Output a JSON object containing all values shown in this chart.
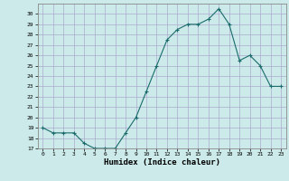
{
  "x": [
    0,
    1,
    2,
    3,
    4,
    5,
    6,
    7,
    8,
    9,
    10,
    11,
    12,
    13,
    14,
    15,
    16,
    17,
    18,
    19,
    20,
    21,
    22,
    23
  ],
  "y": [
    19,
    18.5,
    18.5,
    18.5,
    17.5,
    17,
    17,
    17,
    18.5,
    20,
    22.5,
    25,
    27.5,
    28.5,
    29,
    29,
    29.5,
    30.5,
    29,
    25.5,
    26,
    25,
    23,
    23
  ],
  "title": "",
  "xlabel": "Humidex (Indice chaleur)",
  "line_color": "#1a6b6b",
  "marker": "+",
  "bg_color": "#cceaea",
  "grid_color": "#aaaacc",
  "ylim": [
    17,
    31
  ],
  "xlim": [
    -0.5,
    23.5
  ],
  "yticks": [
    17,
    18,
    19,
    20,
    21,
    22,
    23,
    24,
    25,
    26,
    27,
    28,
    29,
    30
  ],
  "xticks": [
    0,
    1,
    2,
    3,
    4,
    5,
    6,
    7,
    8,
    9,
    10,
    11,
    12,
    13,
    14,
    15,
    16,
    17,
    18,
    19,
    20,
    21,
    22,
    23
  ]
}
